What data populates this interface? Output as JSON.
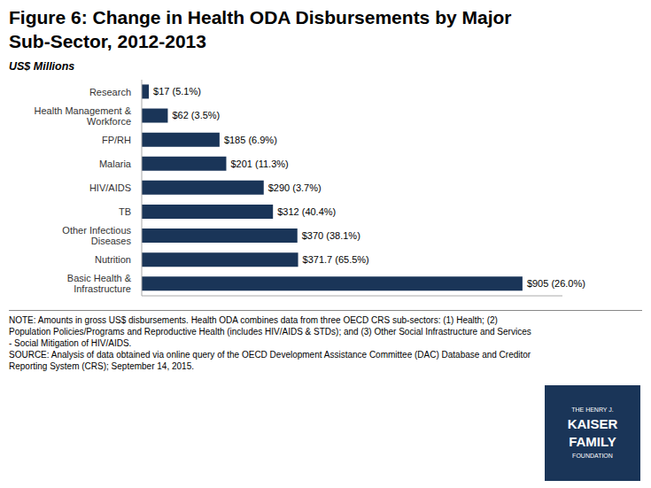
{
  "chart_data": {
    "type": "bar",
    "orientation": "horizontal",
    "title": "Figure 6: Change in Health ODA Disbursements by Major\nSub-Sector, 2012-2013",
    "xlabel": "US$ Millions",
    "categories": [
      "Research",
      "Health Management &\nWorkforce",
      "FP/RH",
      "Malaria",
      "HIV/AIDS",
      "TB",
      "Other Infectious\nDiseases",
      "Nutrition",
      "Basic Health &\nInfrastructure"
    ],
    "values": [
      17,
      62,
      185,
      201,
      290,
      312,
      370,
      371.7,
      905
    ],
    "value_labels": [
      "$17 (5.1%)",
      "$62 (3.5%)",
      "$185 (6.9%)",
      "$201 (11.3%)",
      "$290 (3.7%)",
      "$312 (40.4%)",
      "$370 (38.1%)",
      "$371.7 (65.5%)",
      "$905 (26.0%)"
    ],
    "data_labels": true,
    "color": "#1a3558",
    "xlim": [
      0,
      1000
    ],
    "tick_labels": "y",
    "grid": false,
    "annotations": [
      "NOTE: Amounts in gross US$ disbursements. Health ODA combines data from three OECD CRS sub-sectors: (1) Health; (2)\nPopulation Policies/Programs and Reproductive Health (includes HIV/AIDS & STDs); and (3) Other Social Infrastructure and Services\n- Social Mitigation of HIV/AIDS.\nSOURCE: Analysis of data obtained via online query of the OECD Development Assistance Committee (DAC) Database and Creditor\nReporting System (CRS); September 14, 2015."
    ],
    "logo": {
      "lines": [
        "THE HENRY J.",
        "KAISER",
        "FAMILY",
        "FOUNDATION"
      ],
      "color": "#1a3558",
      "text_color": "#ffffff"
    }
  }
}
